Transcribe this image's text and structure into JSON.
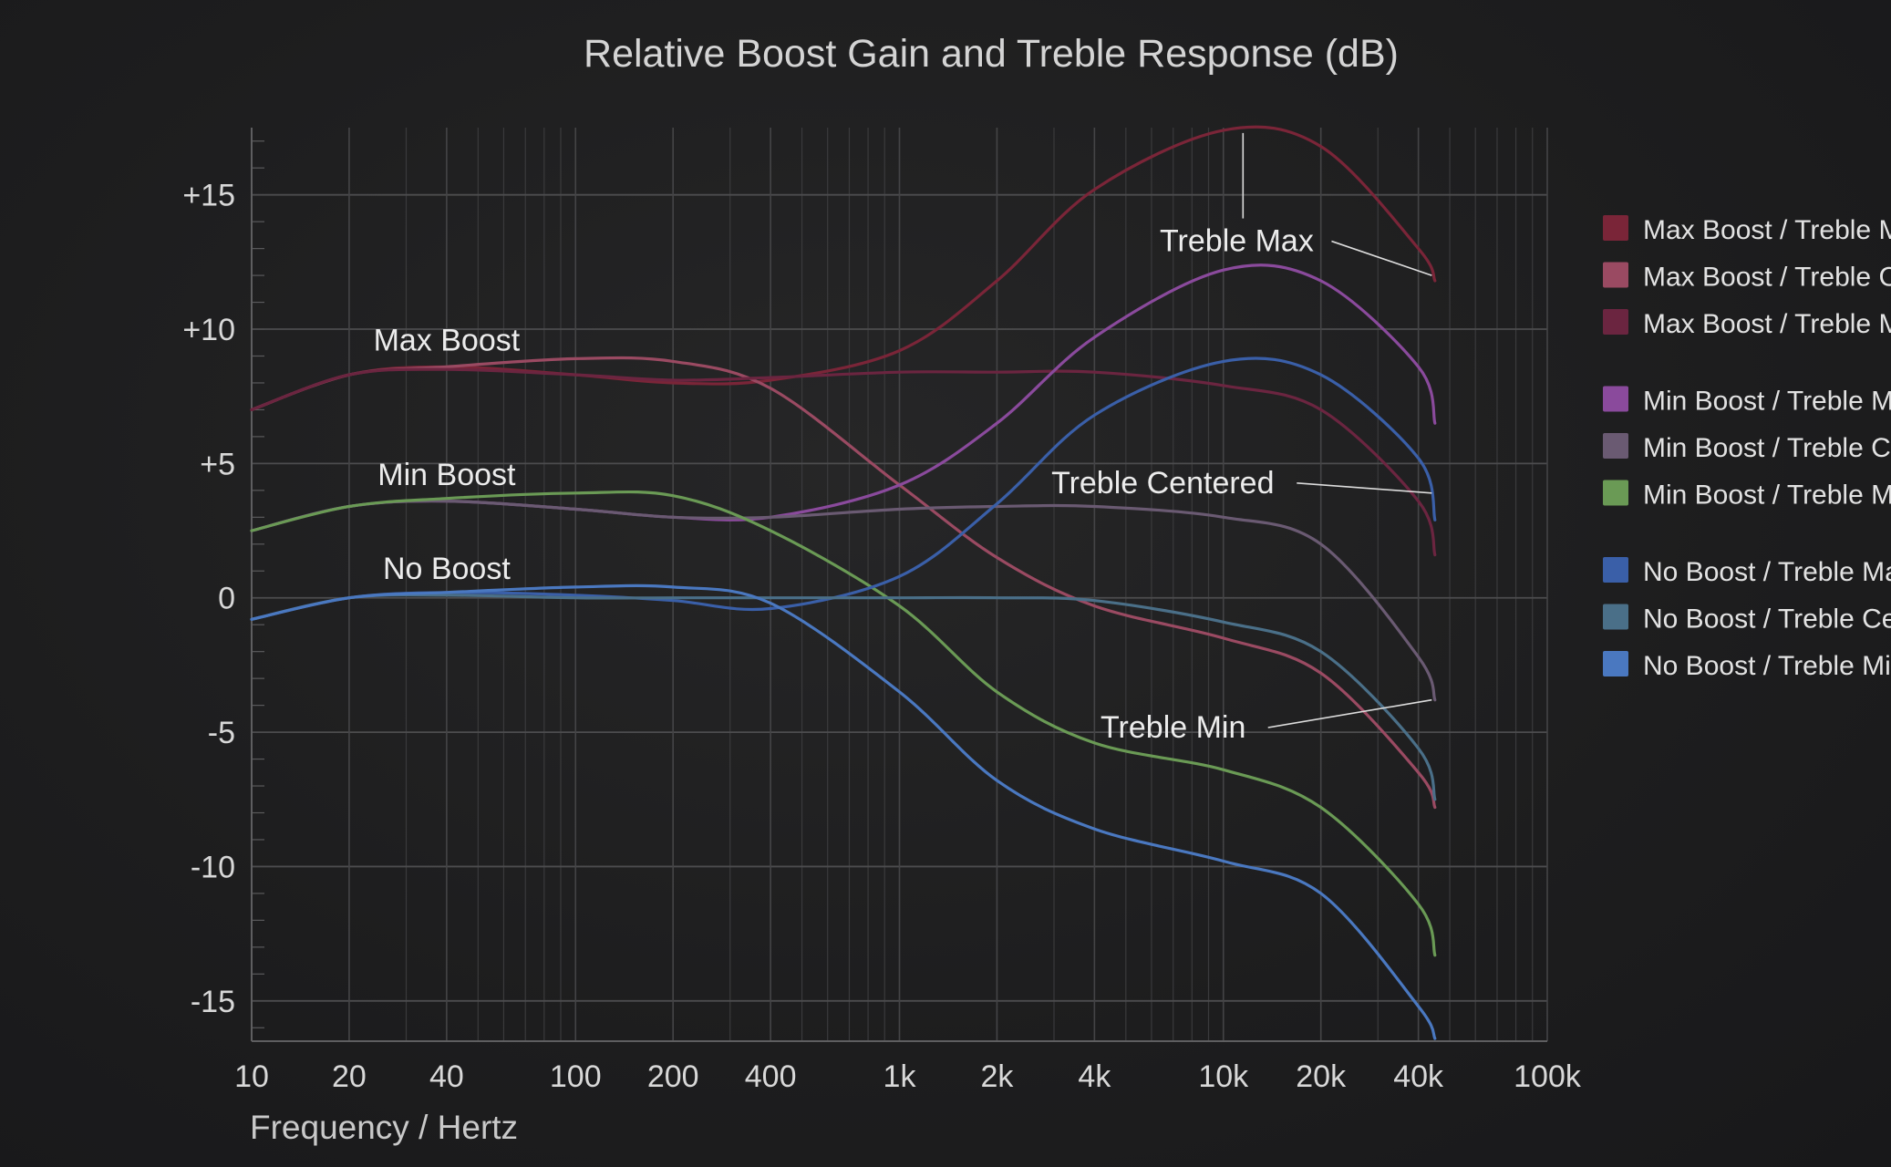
{
  "chart_data": {
    "type": "line",
    "title": "Relative Boost Gain and Treble Response (dB)",
    "xlabel": "Frequency / Hertz",
    "ylabel": "",
    "xscale": "log",
    "xlim": [
      10,
      100000
    ],
    "ylim": [
      -16.5,
      17.5
    ],
    "grid": true,
    "legend_position": "right",
    "x_ticks": [
      {
        "value": 10,
        "label": "10"
      },
      {
        "value": 20,
        "label": "20"
      },
      {
        "value": 40,
        "label": "40"
      },
      {
        "value": 100,
        "label": "100"
      },
      {
        "value": 200,
        "label": "200"
      },
      {
        "value": 400,
        "label": "400"
      },
      {
        "value": 1000,
        "label": "1k"
      },
      {
        "value": 2000,
        "label": "2k"
      },
      {
        "value": 4000,
        "label": "4k"
      },
      {
        "value": 10000,
        "label": "10k"
      },
      {
        "value": 20000,
        "label": "20k"
      },
      {
        "value": 40000,
        "label": "40k"
      },
      {
        "value": 100000,
        "label": "100k"
      }
    ],
    "y_ticks": [
      {
        "value": 15,
        "label": "+15"
      },
      {
        "value": 10,
        "label": "+10"
      },
      {
        "value": 5,
        "label": "+5"
      },
      {
        "value": 0,
        "label": "0"
      },
      {
        "value": -5,
        "label": "-5"
      },
      {
        "value": -10,
        "label": "-10"
      },
      {
        "value": -15,
        "label": "-15"
      }
    ],
    "x": [
      10,
      20,
      40,
      100,
      200,
      400,
      1000,
      2000,
      4000,
      10000,
      20000,
      40000,
      45000
    ],
    "series": [
      {
        "name": "Max Boost / Treble Max",
        "color": "#7a2538",
        "values": [
          7.0,
          8.3,
          8.6,
          8.3,
          8.0,
          8.1,
          9.2,
          11.8,
          15.2,
          17.4,
          16.8,
          13.0,
          11.8
        ]
      },
      {
        "name": "Max Boost / Treble Centered",
        "color": "#9a4a62",
        "values": [
          7.0,
          8.3,
          8.6,
          8.9,
          8.8,
          7.8,
          4.2,
          1.5,
          -0.3,
          -1.5,
          -2.8,
          -6.5,
          -7.8
        ]
      },
      {
        "name": "Max Boost / Treble Min",
        "color": "#6b2540",
        "values": [
          7.0,
          8.3,
          8.5,
          8.3,
          8.1,
          8.2,
          8.4,
          8.4,
          8.4,
          7.9,
          7.0,
          3.6,
          1.6
        ]
      },
      {
        "name": "Min Boost / Treble Max",
        "color": "#8a4a9c",
        "values": [
          2.5,
          3.4,
          3.6,
          3.3,
          3.0,
          3.0,
          4.2,
          6.5,
          9.7,
          12.2,
          11.8,
          8.6,
          6.5
        ]
      },
      {
        "name": "Min Boost / Treble Centered",
        "color": "#6a5a72",
        "values": [
          2.5,
          3.4,
          3.6,
          3.3,
          3.0,
          3.0,
          3.3,
          3.4,
          3.4,
          3.0,
          2.0,
          -2.2,
          -3.8
        ]
      },
      {
        "name": "Min Boost / Treble Min",
        "color": "#6a9a55",
        "values": [
          2.5,
          3.4,
          3.7,
          3.9,
          3.8,
          2.5,
          -0.3,
          -3.5,
          -5.4,
          -6.4,
          -7.8,
          -11.4,
          -13.3
        ]
      },
      {
        "name": "No Boost / Treble Max",
        "color": "#3a5fa8",
        "values": [
          -0.8,
          0.0,
          0.2,
          0.1,
          -0.1,
          -0.4,
          0.8,
          3.5,
          6.8,
          8.8,
          8.3,
          5.2,
          2.9
        ]
      },
      {
        "name": "No Boost / Treble Centered",
        "color": "#4a6f88",
        "values": [
          -0.8,
          0.0,
          0.1,
          0.0,
          0.0,
          0.0,
          0.0,
          0.0,
          -0.1,
          -0.9,
          -2.0,
          -5.6,
          -7.5
        ]
      },
      {
        "name": "No Boost / Treble Min",
        "color": "#4a78c0",
        "values": [
          -0.8,
          0.0,
          0.2,
          0.4,
          0.4,
          -0.2,
          -3.5,
          -6.8,
          -8.6,
          -9.8,
          -11.0,
          -15.2,
          -16.4
        ]
      }
    ],
    "legend_groups": [
      [
        0,
        1,
        2
      ],
      [
        3,
        4,
        5
      ],
      [
        6,
        7,
        8
      ]
    ],
    "annotations": [
      {
        "text": "Max Boost",
        "x": 40,
        "y": 9.2
      },
      {
        "text": "Min Boost",
        "x": 40,
        "y": 4.2
      },
      {
        "text": "No Boost",
        "x": 40,
        "y": 0.7
      },
      {
        "text": "Treble Max",
        "x": 11000,
        "y": 12.9,
        "leader_to": [
          44000,
          12.0
        ],
        "stem_from": [
          11500,
          17.3
        ]
      },
      {
        "text": "Treble Centered",
        "x": 6500,
        "y": 3.9,
        "leader_to": [
          44000,
          3.9
        ]
      },
      {
        "text": "Treble Min",
        "x": 7000,
        "y": -5.2,
        "leader_to": [
          44000,
          -3.8
        ]
      }
    ]
  }
}
